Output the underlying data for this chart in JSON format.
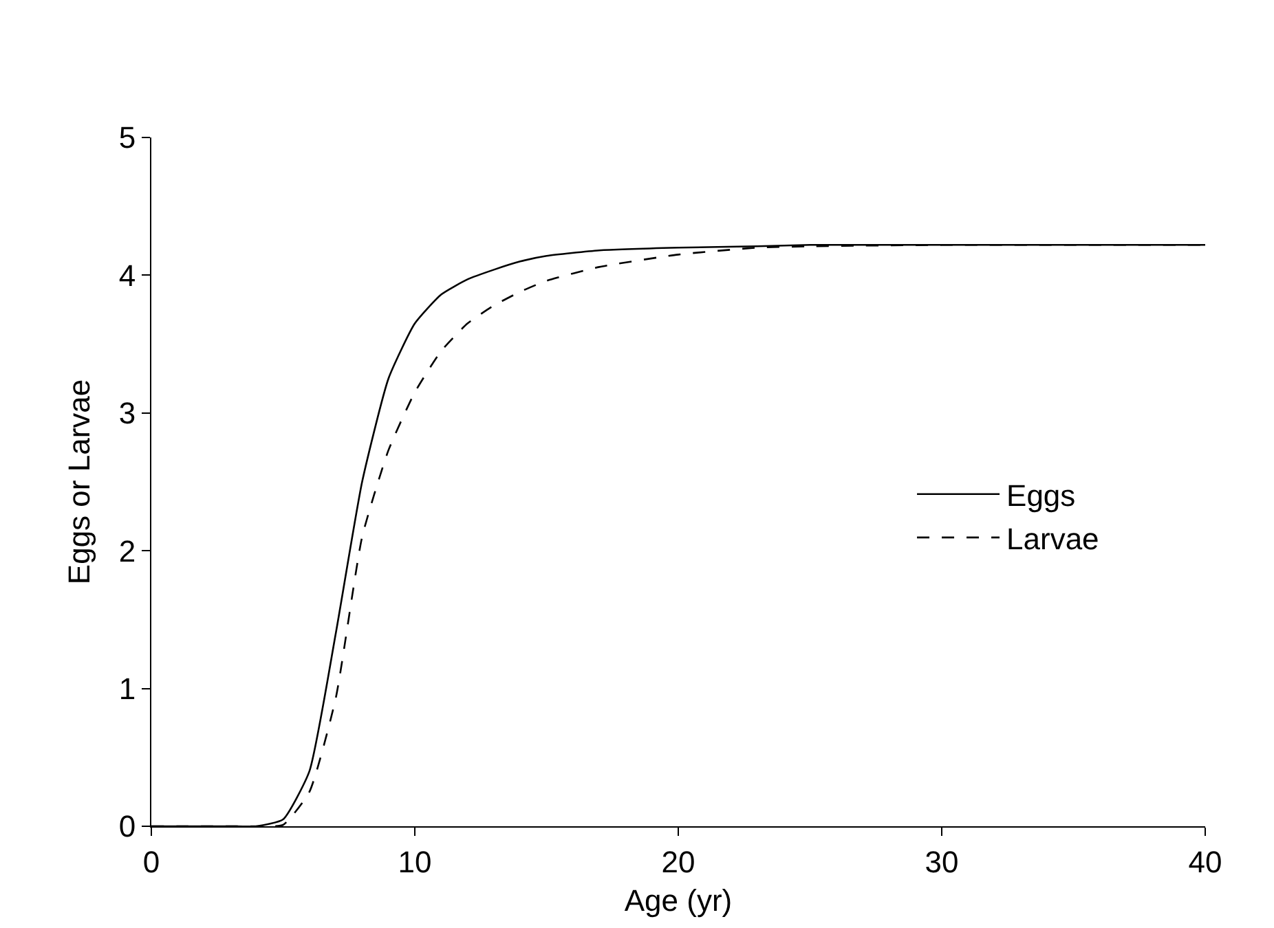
{
  "chart_data": {
    "type": "line",
    "xlabel": "Age (yr)",
    "ylabel": "Eggs or Larvae",
    "x": [
      0,
      1,
      2,
      3,
      4,
      5,
      6,
      7,
      8,
      9,
      10,
      11,
      12,
      13,
      14,
      15,
      17,
      20,
      23,
      25,
      30,
      40
    ],
    "series": [
      {
        "name": "Eggs",
        "color": "#000000",
        "line_style": "solid",
        "values": [
          0,
          0,
          0,
          0,
          0,
          0.05,
          0.4,
          1.4,
          2.5,
          3.25,
          3.65,
          3.86,
          3.97,
          4.04,
          4.1,
          4.14,
          4.18,
          4.2,
          4.21,
          4.22,
          4.22,
          4.22
        ]
      },
      {
        "name": "Larvae",
        "color": "#000000",
        "line_style": "dashed",
        "values": [
          0,
          0,
          0,
          0,
          0,
          0.01,
          0.25,
          0.93,
          2.1,
          2.73,
          3.15,
          3.45,
          3.65,
          3.78,
          3.88,
          3.96,
          4.06,
          4.15,
          4.2,
          4.21,
          4.22,
          4.22
        ]
      }
    ],
    "xlim": [
      0,
      40
    ],
    "xticks": [
      0,
      10,
      20,
      30,
      40
    ],
    "ylim": [
      0,
      5
    ],
    "yticks": [
      0,
      1,
      2,
      3,
      4,
      5
    ],
    "legend": "right",
    "marker": "none"
  }
}
